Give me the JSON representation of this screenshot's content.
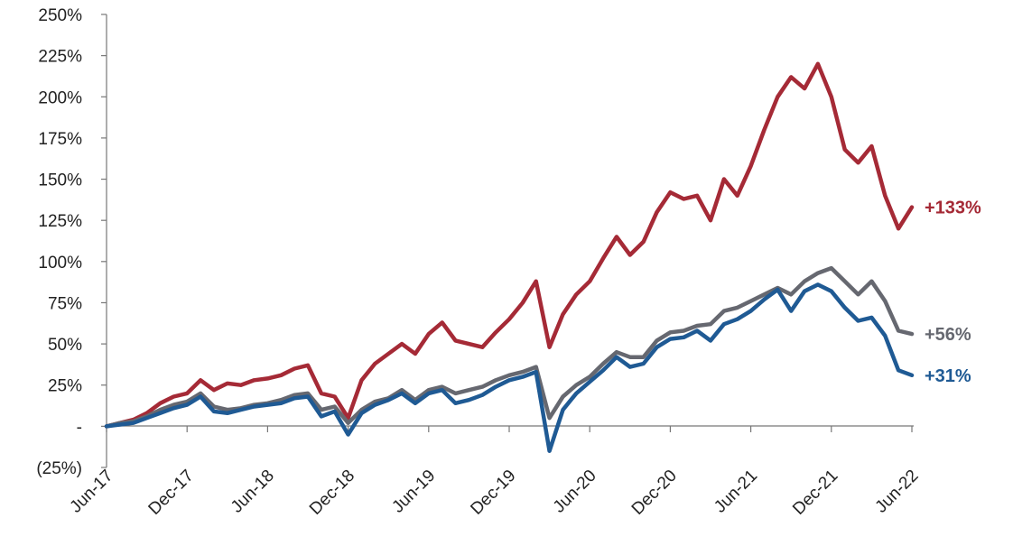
{
  "chart_data": {
    "type": "line",
    "title": "",
    "xlabel": "",
    "ylabel": "",
    "x_ticks": [
      "Jun-17",
      "Dec-17",
      "Jun-18",
      "Dec-18",
      "Jun-19",
      "Dec-19",
      "Jun-20",
      "Dec-20",
      "Jun-21",
      "Dec-21",
      "Jun-22"
    ],
    "y_ticks": [
      {
        "value": 250,
        "label": "250%"
      },
      {
        "value": 225,
        "label": "225%"
      },
      {
        "value": 200,
        "label": "200%"
      },
      {
        "value": 175,
        "label": "175%"
      },
      {
        "value": 150,
        "label": "150%"
      },
      {
        "value": 125,
        "label": "125%"
      },
      {
        "value": 100,
        "label": "100%"
      },
      {
        "value": 75,
        "label": "75%"
      },
      {
        "value": 50,
        "label": "50%"
      },
      {
        "value": 25,
        "label": "25%"
      },
      {
        "value": 0,
        "label": "-"
      },
      {
        "value": -25,
        "label": "(25%)"
      }
    ],
    "ylim": [
      -25,
      250
    ],
    "xlim": [
      "2017-06",
      "2022-06"
    ],
    "grid": false,
    "legend": "none",
    "series": [
      {
        "color": "#a52a36",
        "end_label": "+133%",
        "points": [
          [
            "2017-06",
            0
          ],
          [
            "2017-07",
            2
          ],
          [
            "2017-08",
            4
          ],
          [
            "2017-09",
            8
          ],
          [
            "2017-10",
            14
          ],
          [
            "2017-11",
            18
          ],
          [
            "2017-12",
            20
          ],
          [
            "2018-01",
            28
          ],
          [
            "2018-02",
            22
          ],
          [
            "2018-03",
            26
          ],
          [
            "2018-04",
            25
          ],
          [
            "2018-05",
            28
          ],
          [
            "2018-06",
            29
          ],
          [
            "2018-07",
            31
          ],
          [
            "2018-08",
            35
          ],
          [
            "2018-09",
            37
          ],
          [
            "2018-10",
            20
          ],
          [
            "2018-11",
            18
          ],
          [
            "2018-12",
            5
          ],
          [
            "2019-01",
            28
          ],
          [
            "2019-02",
            38
          ],
          [
            "2019-03",
            44
          ],
          [
            "2019-04",
            50
          ],
          [
            "2019-05",
            44
          ],
          [
            "2019-06",
            56
          ],
          [
            "2019-07",
            63
          ],
          [
            "2019-08",
            52
          ],
          [
            "2019-09",
            50
          ],
          [
            "2019-10",
            48
          ],
          [
            "2019-11",
            57
          ],
          [
            "2019-12",
            65
          ],
          [
            "2020-01",
            75
          ],
          [
            "2020-02",
            88
          ],
          [
            "2020-03",
            48
          ],
          [
            "2020-04",
            68
          ],
          [
            "2020-05",
            80
          ],
          [
            "2020-06",
            88
          ],
          [
            "2020-07",
            102
          ],
          [
            "2020-08",
            115
          ],
          [
            "2020-09",
            104
          ],
          [
            "2020-10",
            112
          ],
          [
            "2020-11",
            130
          ],
          [
            "2020-12",
            142
          ],
          [
            "2021-01",
            138
          ],
          [
            "2021-02",
            140
          ],
          [
            "2021-03",
            125
          ],
          [
            "2021-04",
            150
          ],
          [
            "2021-05",
            140
          ],
          [
            "2021-06",
            158
          ],
          [
            "2021-07",
            180
          ],
          [
            "2021-08",
            200
          ],
          [
            "2021-09",
            212
          ],
          [
            "2021-10",
            205
          ],
          [
            "2021-11",
            220
          ],
          [
            "2021-12",
            200
          ],
          [
            "2022-01",
            168
          ],
          [
            "2022-02",
            160
          ],
          [
            "2022-03",
            170
          ],
          [
            "2022-04",
            140
          ],
          [
            "2022-05",
            120
          ],
          [
            "2022-06",
            133
          ]
        ]
      },
      {
        "color": "#666870",
        "end_label": "+56%",
        "points": [
          [
            "2017-06",
            0
          ],
          [
            "2017-07",
            2
          ],
          [
            "2017-08",
            3
          ],
          [
            "2017-09",
            6
          ],
          [
            "2017-10",
            10
          ],
          [
            "2017-11",
            13
          ],
          [
            "2017-12",
            15
          ],
          [
            "2018-01",
            20
          ],
          [
            "2018-02",
            12
          ],
          [
            "2018-03",
            10
          ],
          [
            "2018-04",
            11
          ],
          [
            "2018-05",
            13
          ],
          [
            "2018-06",
            14
          ],
          [
            "2018-07",
            16
          ],
          [
            "2018-08",
            19
          ],
          [
            "2018-09",
            20
          ],
          [
            "2018-10",
            10
          ],
          [
            "2018-11",
            12
          ],
          [
            "2018-12",
            2
          ],
          [
            "2019-01",
            10
          ],
          [
            "2019-02",
            15
          ],
          [
            "2019-03",
            17
          ],
          [
            "2019-04",
            22
          ],
          [
            "2019-05",
            16
          ],
          [
            "2019-06",
            22
          ],
          [
            "2019-07",
            24
          ],
          [
            "2019-08",
            20
          ],
          [
            "2019-09",
            22
          ],
          [
            "2019-10",
            24
          ],
          [
            "2019-11",
            28
          ],
          [
            "2019-12",
            31
          ],
          [
            "2020-01",
            33
          ],
          [
            "2020-02",
            36
          ],
          [
            "2020-03",
            5
          ],
          [
            "2020-04",
            18
          ],
          [
            "2020-05",
            25
          ],
          [
            "2020-06",
            30
          ],
          [
            "2020-07",
            38
          ],
          [
            "2020-08",
            45
          ],
          [
            "2020-09",
            42
          ],
          [
            "2020-10",
            42
          ],
          [
            "2020-11",
            52
          ],
          [
            "2020-12",
            57
          ],
          [
            "2021-01",
            58
          ],
          [
            "2021-02",
            61
          ],
          [
            "2021-03",
            62
          ],
          [
            "2021-04",
            70
          ],
          [
            "2021-05",
            72
          ],
          [
            "2021-06",
            76
          ],
          [
            "2021-07",
            80
          ],
          [
            "2021-08",
            84
          ],
          [
            "2021-09",
            80
          ],
          [
            "2021-10",
            88
          ],
          [
            "2021-11",
            93
          ],
          [
            "2021-12",
            96
          ],
          [
            "2022-01",
            88
          ],
          [
            "2022-02",
            80
          ],
          [
            "2022-03",
            88
          ],
          [
            "2022-04",
            76
          ],
          [
            "2022-05",
            58
          ],
          [
            "2022-06",
            56
          ]
        ]
      },
      {
        "color": "#1f5a94",
        "end_label": "+31%",
        "points": [
          [
            "2017-06",
            0
          ],
          [
            "2017-07",
            1
          ],
          [
            "2017-08",
            2
          ],
          [
            "2017-09",
            5
          ],
          [
            "2017-10",
            8
          ],
          [
            "2017-11",
            11
          ],
          [
            "2017-12",
            13
          ],
          [
            "2018-01",
            18
          ],
          [
            "2018-02",
            9
          ],
          [
            "2018-03",
            8
          ],
          [
            "2018-04",
            10
          ],
          [
            "2018-05",
            12
          ],
          [
            "2018-06",
            13
          ],
          [
            "2018-07",
            14
          ],
          [
            "2018-08",
            17
          ],
          [
            "2018-09",
            18
          ],
          [
            "2018-10",
            6
          ],
          [
            "2018-11",
            9
          ],
          [
            "2018-12",
            -5
          ],
          [
            "2019-01",
            8
          ],
          [
            "2019-02",
            13
          ],
          [
            "2019-03",
            16
          ],
          [
            "2019-04",
            20
          ],
          [
            "2019-05",
            14
          ],
          [
            "2019-06",
            20
          ],
          [
            "2019-07",
            22
          ],
          [
            "2019-08",
            14
          ],
          [
            "2019-09",
            16
          ],
          [
            "2019-10",
            19
          ],
          [
            "2019-11",
            24
          ],
          [
            "2019-12",
            28
          ],
          [
            "2020-01",
            30
          ],
          [
            "2020-02",
            33
          ],
          [
            "2020-03",
            -15
          ],
          [
            "2020-04",
            10
          ],
          [
            "2020-05",
            20
          ],
          [
            "2020-06",
            27
          ],
          [
            "2020-07",
            34
          ],
          [
            "2020-08",
            42
          ],
          [
            "2020-09",
            36
          ],
          [
            "2020-10",
            38
          ],
          [
            "2020-11",
            48
          ],
          [
            "2020-12",
            53
          ],
          [
            "2021-01",
            54
          ],
          [
            "2021-02",
            58
          ],
          [
            "2021-03",
            52
          ],
          [
            "2021-04",
            62
          ],
          [
            "2021-05",
            65
          ],
          [
            "2021-06",
            70
          ],
          [
            "2021-07",
            77
          ],
          [
            "2021-08",
            83
          ],
          [
            "2021-09",
            70
          ],
          [
            "2021-10",
            82
          ],
          [
            "2021-11",
            86
          ],
          [
            "2021-12",
            82
          ],
          [
            "2022-01",
            72
          ],
          [
            "2022-02",
            64
          ],
          [
            "2022-03",
            66
          ],
          [
            "2022-04",
            55
          ],
          [
            "2022-05",
            34
          ],
          [
            "2022-06",
            31
          ]
        ]
      }
    ]
  }
}
